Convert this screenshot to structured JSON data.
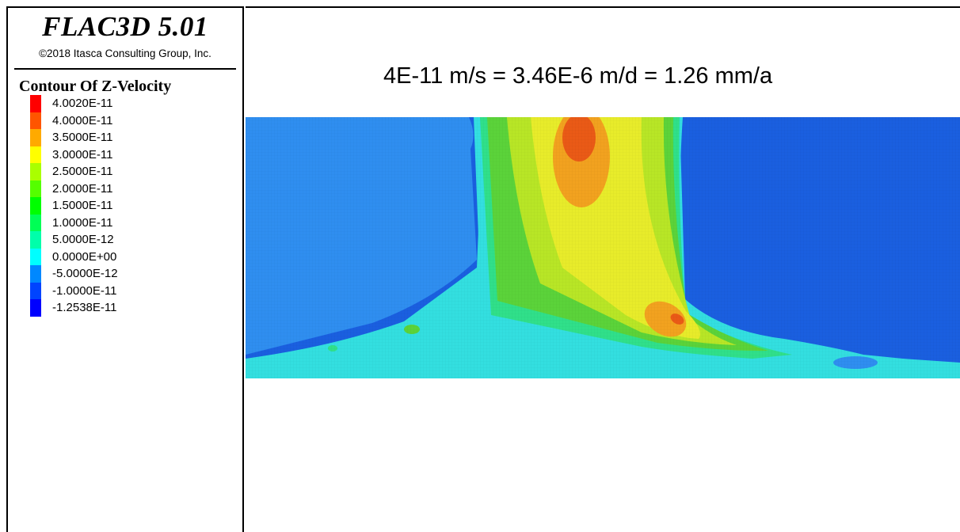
{
  "app": {
    "title": "FLAC3D 5.01",
    "copyright": "©2018 Itasca Consulting Group, Inc."
  },
  "legend": {
    "title": "Contour Of Z-Velocity",
    "items": [
      {
        "label": "4.0020E-11",
        "color": "#ff0000"
      },
      {
        "label": "4.0000E-11",
        "color": "#ff5500"
      },
      {
        "label": "3.5000E-11",
        "color": "#ffaa00"
      },
      {
        "label": "3.0000E-11",
        "color": "#ffff00"
      },
      {
        "label": "2.5000E-11",
        "color": "#aaff00"
      },
      {
        "label": "2.0000E-11",
        "color": "#55ff00"
      },
      {
        "label": "1.5000E-11",
        "color": "#00ff00"
      },
      {
        "label": "1.0000E-11",
        "color": "#00ff55"
      },
      {
        "label": "5.0000E-12",
        "color": "#00ffaa"
      },
      {
        "label": "0.0000E+00",
        "color": "#00ffff"
      },
      {
        "label": "-5.0000E-12",
        "color": "#0088ff"
      },
      {
        "label": "-1.0000E-11",
        "color": "#0044ff"
      },
      {
        "label": "-1.2538E-11",
        "color": "#0000ff"
      }
    ]
  },
  "plot": {
    "note": "4E-11 m/s = 3.46E-6 m/d = 1.26 mm/a"
  },
  "colors": {
    "background_blue": "#1a5fe0",
    "light_blue": "#2f8ef0",
    "cyan": "#33dfe0",
    "green_cyan": "#30e08a",
    "green": "#5bd33a",
    "yellow_green": "#b8e626",
    "yellow": "#e8ec2a",
    "orange": "#f2a21f",
    "red_orange": "#ea5a16"
  }
}
